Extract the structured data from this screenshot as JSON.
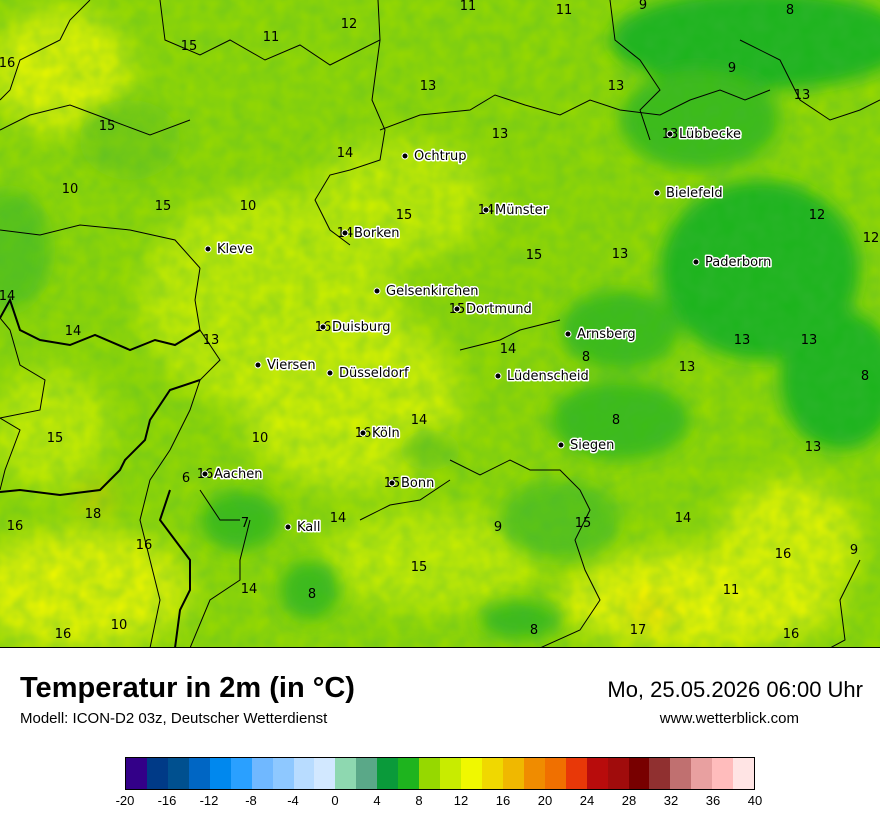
{
  "map": {
    "cities": [
      {
        "name": "Ochtrup",
        "value": null
      },
      {
        "name": "Lübbecke",
        "value": "13"
      },
      {
        "name": "Bielefeld",
        "value": null
      },
      {
        "name": "Münster",
        "value": "14"
      },
      {
        "name": "Borken",
        "value": "14"
      },
      {
        "name": "Kleve",
        "value": null
      },
      {
        "name": "Paderborn",
        "value": null
      },
      {
        "name": "Gelsenkirchen",
        "value": null
      },
      {
        "name": "Dortmund",
        "value": "15"
      },
      {
        "name": "Duisburg",
        "value": "16"
      },
      {
        "name": "Arnsberg",
        "value": null
      },
      {
        "name": "Viersen",
        "value": null
      },
      {
        "name": "Düsseldorf",
        "value": null
      },
      {
        "name": "Lüdenscheid",
        "value": null
      },
      {
        "name": "Köln",
        "value": "16"
      },
      {
        "name": "Siegen",
        "value": null
      },
      {
        "name": "Aachen",
        "value": "16"
      },
      {
        "name": "Bonn",
        "value": "15"
      },
      {
        "name": "Kall",
        "value": null
      }
    ],
    "values": [
      "11",
      "11",
      "9",
      "8",
      "12",
      "11",
      "15",
      "16",
      "9",
      "13",
      "13",
      "13",
      "15",
      "14",
      "13",
      "10",
      "15",
      "10",
      "12",
      "12",
      "14",
      "14",
      "13",
      "13",
      "14",
      "8",
      "13",
      "13",
      "8",
      "13",
      "15",
      "15",
      "10",
      "14",
      "8",
      "13",
      "16",
      "18",
      "6",
      "7",
      "16",
      "15",
      "14",
      "9",
      "15",
      "14",
      "16",
      "9",
      "14",
      "8",
      "15",
      "11",
      "16",
      "10",
      "8",
      "17",
      "16"
    ]
  },
  "footer": {
    "title": "Temperatur in 2m (in °C)",
    "model": "Modell: ICON-D2 03z, Deutscher Wetterdienst",
    "datetime": "Mo, 25.05.2026 06:00 Uhr",
    "website": "www.wetterblick.com"
  },
  "legend": {
    "colors": [
      "#330088",
      "#003a87",
      "#00508f",
      "#0066c4",
      "#0088ee",
      "#2aa0ff",
      "#70b8ff",
      "#8ec8ff",
      "#b8dcff",
      "#d2e8ff",
      "#8ed8b0",
      "#5aa888",
      "#0a9a3a",
      "#1eb41e",
      "#96d800",
      "#c8ec00",
      "#f0f800",
      "#f0d800",
      "#f0b800",
      "#f08c00",
      "#f07000",
      "#e83808",
      "#b80c0c",
      "#a00c0c",
      "#780000",
      "#903030",
      "#c07070",
      "#e8a0a0",
      "#ffbcbc",
      "#ffe4e4"
    ],
    "ticks": [
      "-20",
      "-16",
      "-12",
      "-8",
      "-4",
      "0",
      "4",
      "8",
      "12",
      "16",
      "20",
      "24",
      "28",
      "32",
      "36",
      "40"
    ]
  }
}
